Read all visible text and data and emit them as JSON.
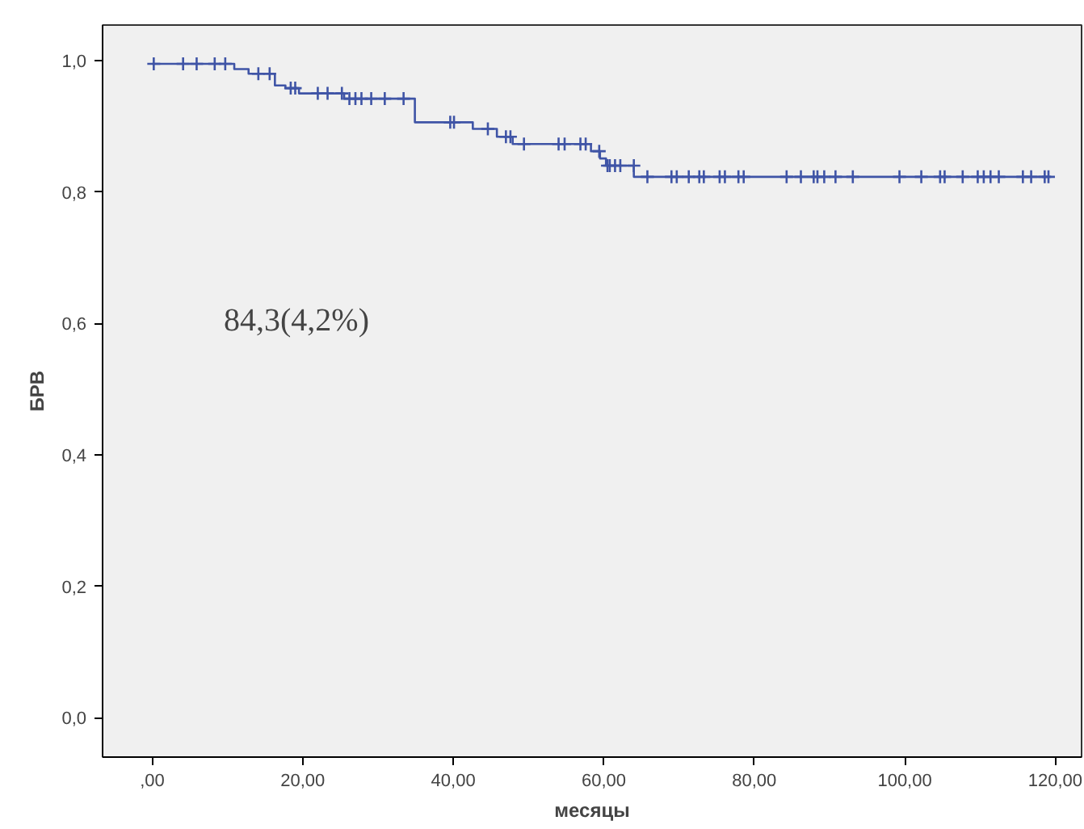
{
  "chart_data": {
    "type": "step",
    "xlabel": "месяцы",
    "ylabel": "БРВ",
    "xlim": [
      -6.6,
      123.5
    ],
    "ylim": [
      -0.06,
      1.054
    ],
    "xticks": [
      {
        "value": 0,
        "label": ",00"
      },
      {
        "value": 20,
        "label": "20,00"
      },
      {
        "value": 40,
        "label": "40,00"
      },
      {
        "value": 60,
        "label": "60,00"
      },
      {
        "value": 80,
        "label": "80,00"
      },
      {
        "value": 100,
        "label": "100,00"
      },
      {
        "value": 120,
        "label": "120,00"
      }
    ],
    "yticks": [
      {
        "value": 0,
        "label": "0,0"
      },
      {
        "value": 0.2,
        "label": "0,2"
      },
      {
        "value": 0.4,
        "label": "0,4"
      },
      {
        "value": 0.6,
        "label": "0,6"
      },
      {
        "value": 0.8,
        "label": "0,8"
      },
      {
        "value": 1.0,
        "label": "1,0"
      }
    ],
    "grid": false,
    "series": [
      {
        "marker": "none",
        "color": "#3f54a6",
        "x": [
          0,
          10.9,
          12.8,
          16.3,
          17.7,
          19.5,
          25.5,
          34.9,
          42.6,
          45.8,
          47.9,
          58.3,
          59.5,
          60.3,
          64,
          119.1
        ],
        "values": [
          0.995,
          0.987,
          0.98,
          0.962,
          0.958,
          0.95,
          0.942,
          0.906,
          0.896,
          0.884,
          0.873,
          0.862,
          0.851,
          0.84,
          0.823,
          0.823
        ]
      },
      {
        "type": "scatter",
        "marker": "cross",
        "color": "#3f54a6",
        "x": [
          0.2,
          4.1,
          5.9,
          8.3,
          9.7,
          14.1,
          15.6,
          18.4,
          19,
          22,
          23.3,
          25.2,
          26.2,
          27,
          27.8,
          29.1,
          30.9,
          33.4,
          39.6,
          40.1,
          44.6,
          47,
          47.6,
          49.4,
          54,
          54.8,
          56.9,
          57.6,
          59.4,
          60.5,
          60.8,
          61.5,
          62.2,
          64,
          65.8,
          69,
          69.7,
          71.3,
          72.7,
          73.3,
          75.4,
          76.1,
          77.9,
          78.6,
          84.3,
          86.2,
          87.9,
          88.4,
          89.3,
          90.8,
          93.1,
          99.3,
          102.2,
          104.7,
          105.3,
          107.7,
          109.7,
          110.5,
          111.4,
          112.5,
          115.7,
          116.8,
          118.6,
          119.1
        ],
        "values": [
          0.995,
          0.995,
          0.995,
          0.995,
          0.995,
          0.98,
          0.98,
          0.958,
          0.958,
          0.95,
          0.95,
          0.95,
          0.942,
          0.942,
          0.942,
          0.942,
          0.942,
          0.942,
          0.906,
          0.906,
          0.896,
          0.884,
          0.884,
          0.873,
          0.873,
          0.873,
          0.873,
          0.873,
          0.862,
          0.84,
          0.84,
          0.84,
          0.84,
          0.84,
          0.823,
          0.823,
          0.823,
          0.823,
          0.823,
          0.823,
          0.823,
          0.823,
          0.823,
          0.823,
          0.823,
          0.823,
          0.823,
          0.823,
          0.823,
          0.823,
          0.823,
          0.823,
          0.823,
          0.823,
          0.823,
          0.823,
          0.823,
          0.823,
          0.823,
          0.823,
          0.823,
          0.823,
          0.823,
          0.823
        ]
      }
    ],
    "annotations": [
      "84,3(4,2%)"
    ]
  }
}
